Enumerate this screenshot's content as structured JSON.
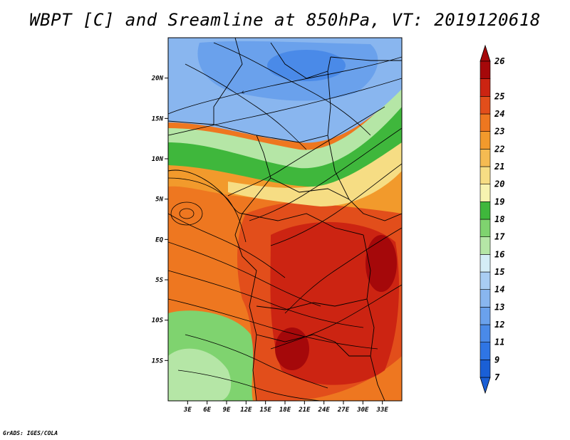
{
  "title": "WBPT [C] and Sreamline at 850hPa, VT: 2019120618",
  "credit": "GrADS: IGES/COLA",
  "map": {
    "lon_range": [
      0,
      36
    ],
    "lat_range": [
      -20,
      25
    ],
    "lat_ticks": [
      {
        "value": 20,
        "label": "20N"
      },
      {
        "value": 15,
        "label": "15N"
      },
      {
        "value": 10,
        "label": "10N"
      },
      {
        "value": 5,
        "label": "5N"
      },
      {
        "value": 0,
        "label": "EQ"
      },
      {
        "value": -5,
        "label": "5S"
      },
      {
        "value": -10,
        "label": "10S"
      },
      {
        "value": -15,
        "label": "15S"
      }
    ],
    "lon_ticks": [
      {
        "value": 3,
        "label": "3E"
      },
      {
        "value": 6,
        "label": "6E"
      },
      {
        "value": 9,
        "label": "9E"
      },
      {
        "value": 12,
        "label": "12E"
      },
      {
        "value": 15,
        "label": "15E"
      },
      {
        "value": 18,
        "label": "18E"
      },
      {
        "value": 21,
        "label": "21E"
      },
      {
        "value": 24,
        "label": "24E"
      },
      {
        "value": 27,
        "label": "27E"
      },
      {
        "value": 30,
        "label": "30E"
      },
      {
        "value": 33,
        "label": "33E"
      }
    ]
  },
  "colorbar": {
    "labels": [
      "7",
      "9",
      "11",
      "12",
      "13",
      "14",
      "15",
      "16",
      "17",
      "18",
      "19",
      "20",
      "21",
      "22",
      "23",
      "24",
      "25",
      "26"
    ],
    "colors": [
      "#1a5fd6",
      "#2f75e4",
      "#4a8ae8",
      "#6aa1ec",
      "#89b6ef",
      "#a9cdf3",
      "#d4edf6",
      "#b5e6a6",
      "#7fd36f",
      "#3fb73c",
      "#f7f3b0",
      "#f6dd84",
      "#f5bb52",
      "#f29a2c",
      "#ee7720",
      "#e24e1b",
      "#cc2412",
      "#a5080a"
    ]
  }
}
